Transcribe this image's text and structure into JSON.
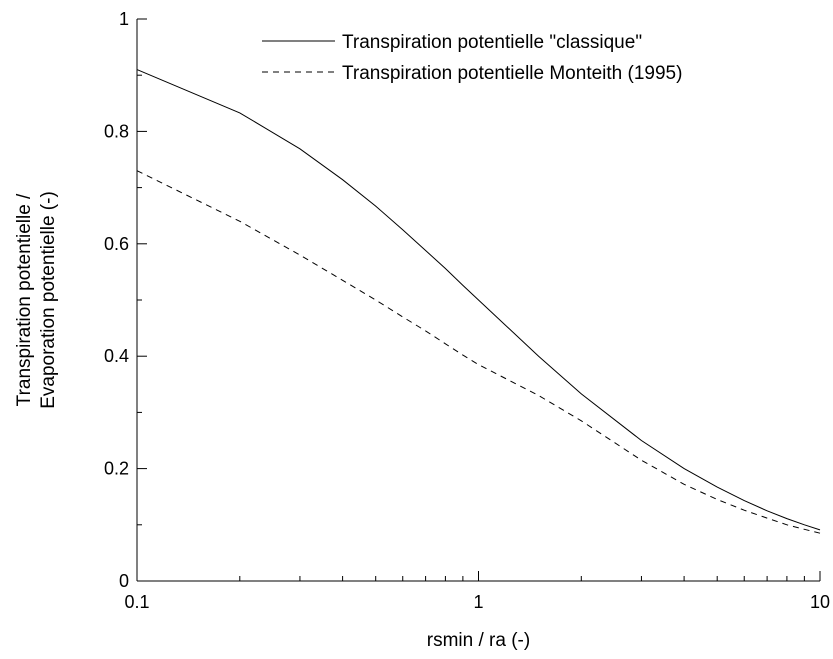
{
  "chart_data": {
    "type": "line",
    "xscale": "log",
    "xlim": [
      0.1,
      10
    ],
    "ylim": [
      0,
      1
    ],
    "xlabel": "rsmin / ra (-)",
    "ylabel_lines": [
      "Transpiration potentielle /",
      "Evaporation potentielle (-)"
    ],
    "x_ticks": [
      0.1,
      1,
      10
    ],
    "x_tick_labels": [
      "0.1",
      "1",
      "10"
    ],
    "y_ticks": [
      0,
      0.2,
      0.4,
      0.6,
      0.8,
      1
    ],
    "y_tick_labels": [
      "0",
      "0.2",
      "0.4",
      "0.6",
      "0.8",
      "1"
    ],
    "grid": false,
    "legend_position": "top-right",
    "series": [
      {
        "name": "Transpiration potentielle \"classique\"",
        "style": "solid",
        "color": "#000000",
        "x": [
          0.1,
          0.2,
          0.3,
          0.4,
          0.5,
          0.6,
          0.7,
          0.8,
          0.9,
          1,
          1.5,
          2,
          3,
          4,
          5,
          6,
          7,
          8,
          9,
          10
        ],
        "y": [
          0.91,
          0.833,
          0.769,
          0.714,
          0.667,
          0.625,
          0.588,
          0.556,
          0.526,
          0.5,
          0.4,
          0.333,
          0.25,
          0.2,
          0.167,
          0.143,
          0.125,
          0.111,
          0.1,
          0.091
        ]
      },
      {
        "name": "Transpiration potentielle Monteith (1995)",
        "style": "dashed",
        "color": "#000000",
        "x": [
          0.1,
          0.2,
          0.3,
          0.4,
          0.5,
          0.6,
          0.7,
          0.8,
          0.9,
          1,
          1.5,
          2,
          3,
          4,
          5,
          6,
          7,
          8,
          9,
          10
        ],
        "y": [
          0.73,
          0.64,
          0.58,
          0.535,
          0.5,
          0.47,
          0.445,
          0.422,
          0.402,
          0.385,
          0.33,
          0.285,
          0.215,
          0.172,
          0.145,
          0.126,
          0.112,
          0.1,
          0.092,
          0.085
        ]
      }
    ]
  }
}
